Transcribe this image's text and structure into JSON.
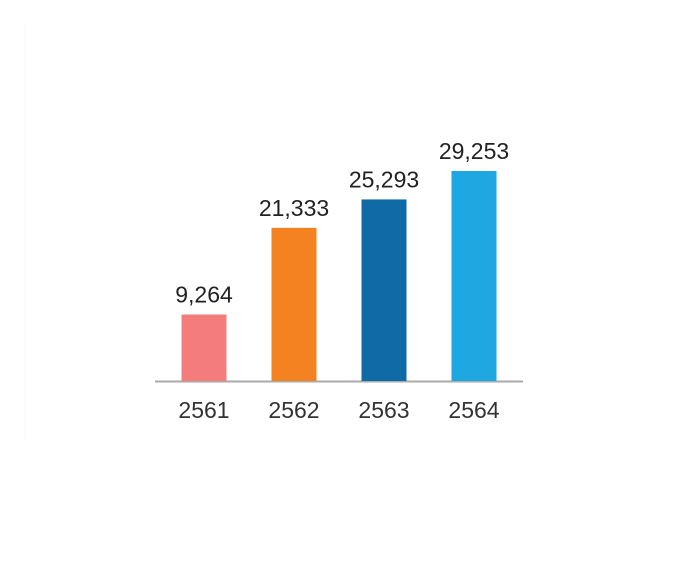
{
  "chart_data": {
    "type": "bar",
    "categories": [
      "2561",
      "2562",
      "2563",
      "2564"
    ],
    "values": [
      9264,
      21333,
      25293,
      29253
    ],
    "value_labels": [
      "9,264",
      "21,333",
      "25,293",
      "29,253"
    ],
    "colors": [
      "#f47c7c",
      "#f58220",
      "#0f6aa6",
      "#1ea7e1"
    ]
  }
}
